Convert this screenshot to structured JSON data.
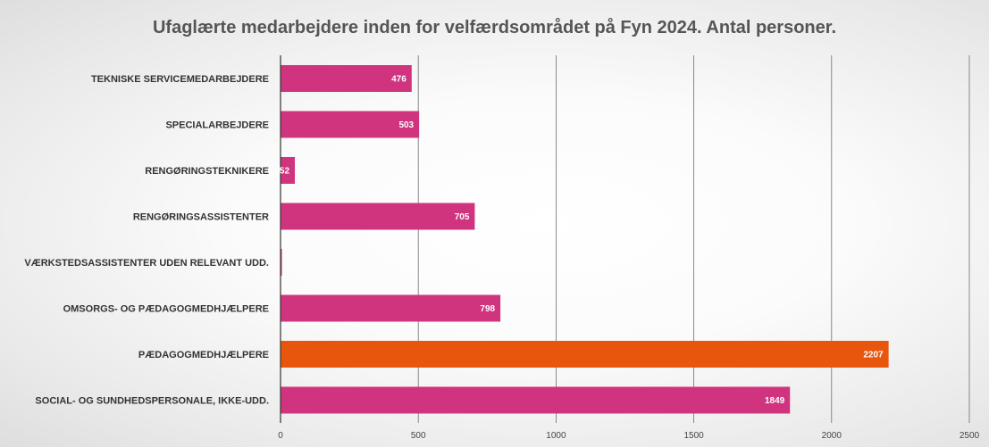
{
  "chart_data": {
    "type": "bar",
    "orientation": "horizontal",
    "title": "Ufaglærte medarbejdere inden for velfærdsområdet på Fyn 2024. Antal personer.",
    "xlabel": "",
    "ylabel": "",
    "categories": [
      "TEKNISKE SERVICEMEDARBEJDERE",
      "SPECIALARBEJDERE",
      "RENGØRINGSTEKNIKERE",
      "RENGØRINGSASSISTENTER",
      "VÆRKSTEDSASSISTENTER UDEN RELEVANT UDD.",
      "OMSORGS- OG PÆDAGOGMEDHJÆLPERE",
      "PÆDAGOGMEDHJÆLPERE",
      "SOCIAL- OG SUNDHEDSPERSONALE, IKKE-UDD."
    ],
    "values": [
      476,
      503,
      52,
      705,
      5,
      798,
      2207,
      1849
    ],
    "data_labels": [
      "476",
      "503",
      "52",
      "705",
      "",
      "798",
      "2207",
      "1849"
    ],
    "bar_colors": [
      "#d0347f",
      "#d0347f",
      "#d0347f",
      "#d0347f",
      "#d0347f",
      "#d0347f",
      "#e8560e",
      "#d0347f"
    ],
    "xlim": [
      0,
      2500
    ],
    "xticks": [
      0,
      500,
      1000,
      1500,
      2000,
      2500
    ],
    "grid": true,
    "legend": "none"
  }
}
